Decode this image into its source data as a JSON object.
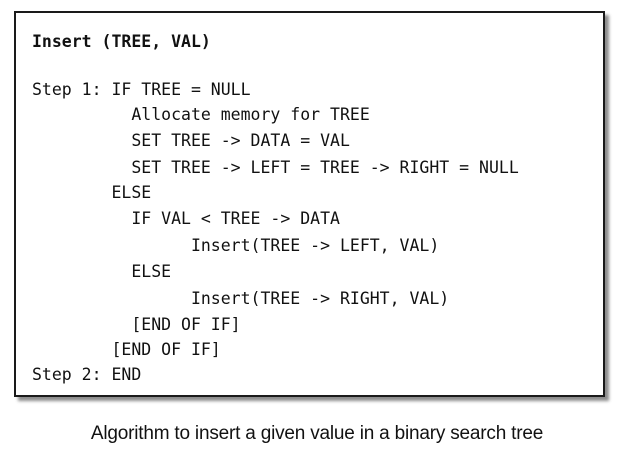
{
  "algorithm": {
    "title": "Insert (TREE, VAL)",
    "lines": [
      "Step 1: IF TREE = NULL",
      "          Allocate memory for TREE",
      "          SET TREE -> DATA = VAL",
      "          SET TREE -> LEFT = TREE -> RIGHT = NULL",
      "        ELSE",
      "          IF VAL < TREE -> DATA",
      "                Insert(TREE -> LEFT, VAL)",
      "          ELSE",
      "                Insert(TREE -> RIGHT, VAL)",
      "          [END OF IF]",
      "        [END OF IF]",
      "Step 2: END"
    ]
  },
  "caption": "Algorithm to insert a given value in a binary search tree"
}
